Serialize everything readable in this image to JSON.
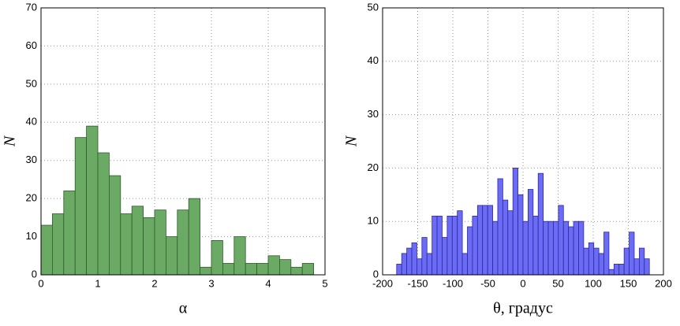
{
  "chart_data": [
    {
      "type": "histogram",
      "xlabel": "α",
      "ylabel": "N",
      "color": "#6aaa64",
      "edgecolor": "#2f5a2b",
      "bins": [
        0,
        0.2,
        0.4,
        0.6,
        0.8,
        1.0,
        1.2,
        1.4,
        1.6,
        1.8,
        2.0,
        2.2,
        2.4,
        2.6,
        2.8,
        3.0,
        3.2,
        3.4,
        3.6,
        3.8,
        4.0,
        4.2,
        4.4,
        4.6,
        4.8
      ],
      "values": [
        13,
        16,
        22,
        36,
        39,
        32,
        26,
        16,
        18,
        15,
        17,
        10,
        17,
        20,
        2,
        9,
        3,
        10,
        3,
        3,
        5,
        4,
        2,
        3
      ],
      "xlim": [
        0,
        5
      ],
      "xticks": [
        0,
        1,
        2,
        3,
        4,
        5
      ],
      "ylim": [
        0,
        70
      ],
      "yticks": [
        0,
        10,
        20,
        30,
        40,
        50,
        60,
        70
      ],
      "grid": true
    },
    {
      "type": "histogram",
      "xlabel": "θ, градус",
      "ylabel": "N",
      "color": "#6b6bf5",
      "edgecolor": "#2a2aa0",
      "bins": [
        -180,
        -172.8,
        -165.6,
        -158.4,
        -151.2,
        -144,
        -136.8,
        -129.6,
        -122.4,
        -115.2,
        -108,
        -100.8,
        -93.6,
        -86.4,
        -79.2,
        -72,
        -64.8,
        -57.6,
        -50.4,
        -43.2,
        -36,
        -28.8,
        -21.6,
        -14.4,
        -7.2,
        0,
        7.2,
        14.4,
        21.6,
        28.8,
        36,
        43.2,
        50.4,
        57.6,
        64.8,
        72,
        79.2,
        86.4,
        93.6,
        100.8,
        108,
        115.2,
        122.4,
        129.6,
        136.8,
        144,
        151.2,
        158.4,
        165.6,
        172.8,
        180
      ],
      "values": [
        2,
        4,
        5,
        6,
        3,
        7,
        4,
        11,
        11,
        7,
        11,
        11,
        12,
        4,
        9,
        11,
        13,
        13,
        13,
        10,
        18,
        14,
        12,
        20,
        15,
        10,
        16,
        11,
        19,
        10,
        10,
        10,
        13,
        10,
        9,
        10,
        10,
        5,
        6,
        5,
        4,
        8,
        1,
        2,
        2,
        5,
        8,
        3,
        5,
        3
      ],
      "xlim": [
        -200,
        200
      ],
      "xticks": [
        -200,
        -150,
        -100,
        -50,
        0,
        50,
        100,
        150,
        200
      ],
      "ylim": [
        0,
        50
      ],
      "yticks": [
        0,
        10,
        20,
        30,
        40,
        50
      ],
      "grid": true
    }
  ]
}
